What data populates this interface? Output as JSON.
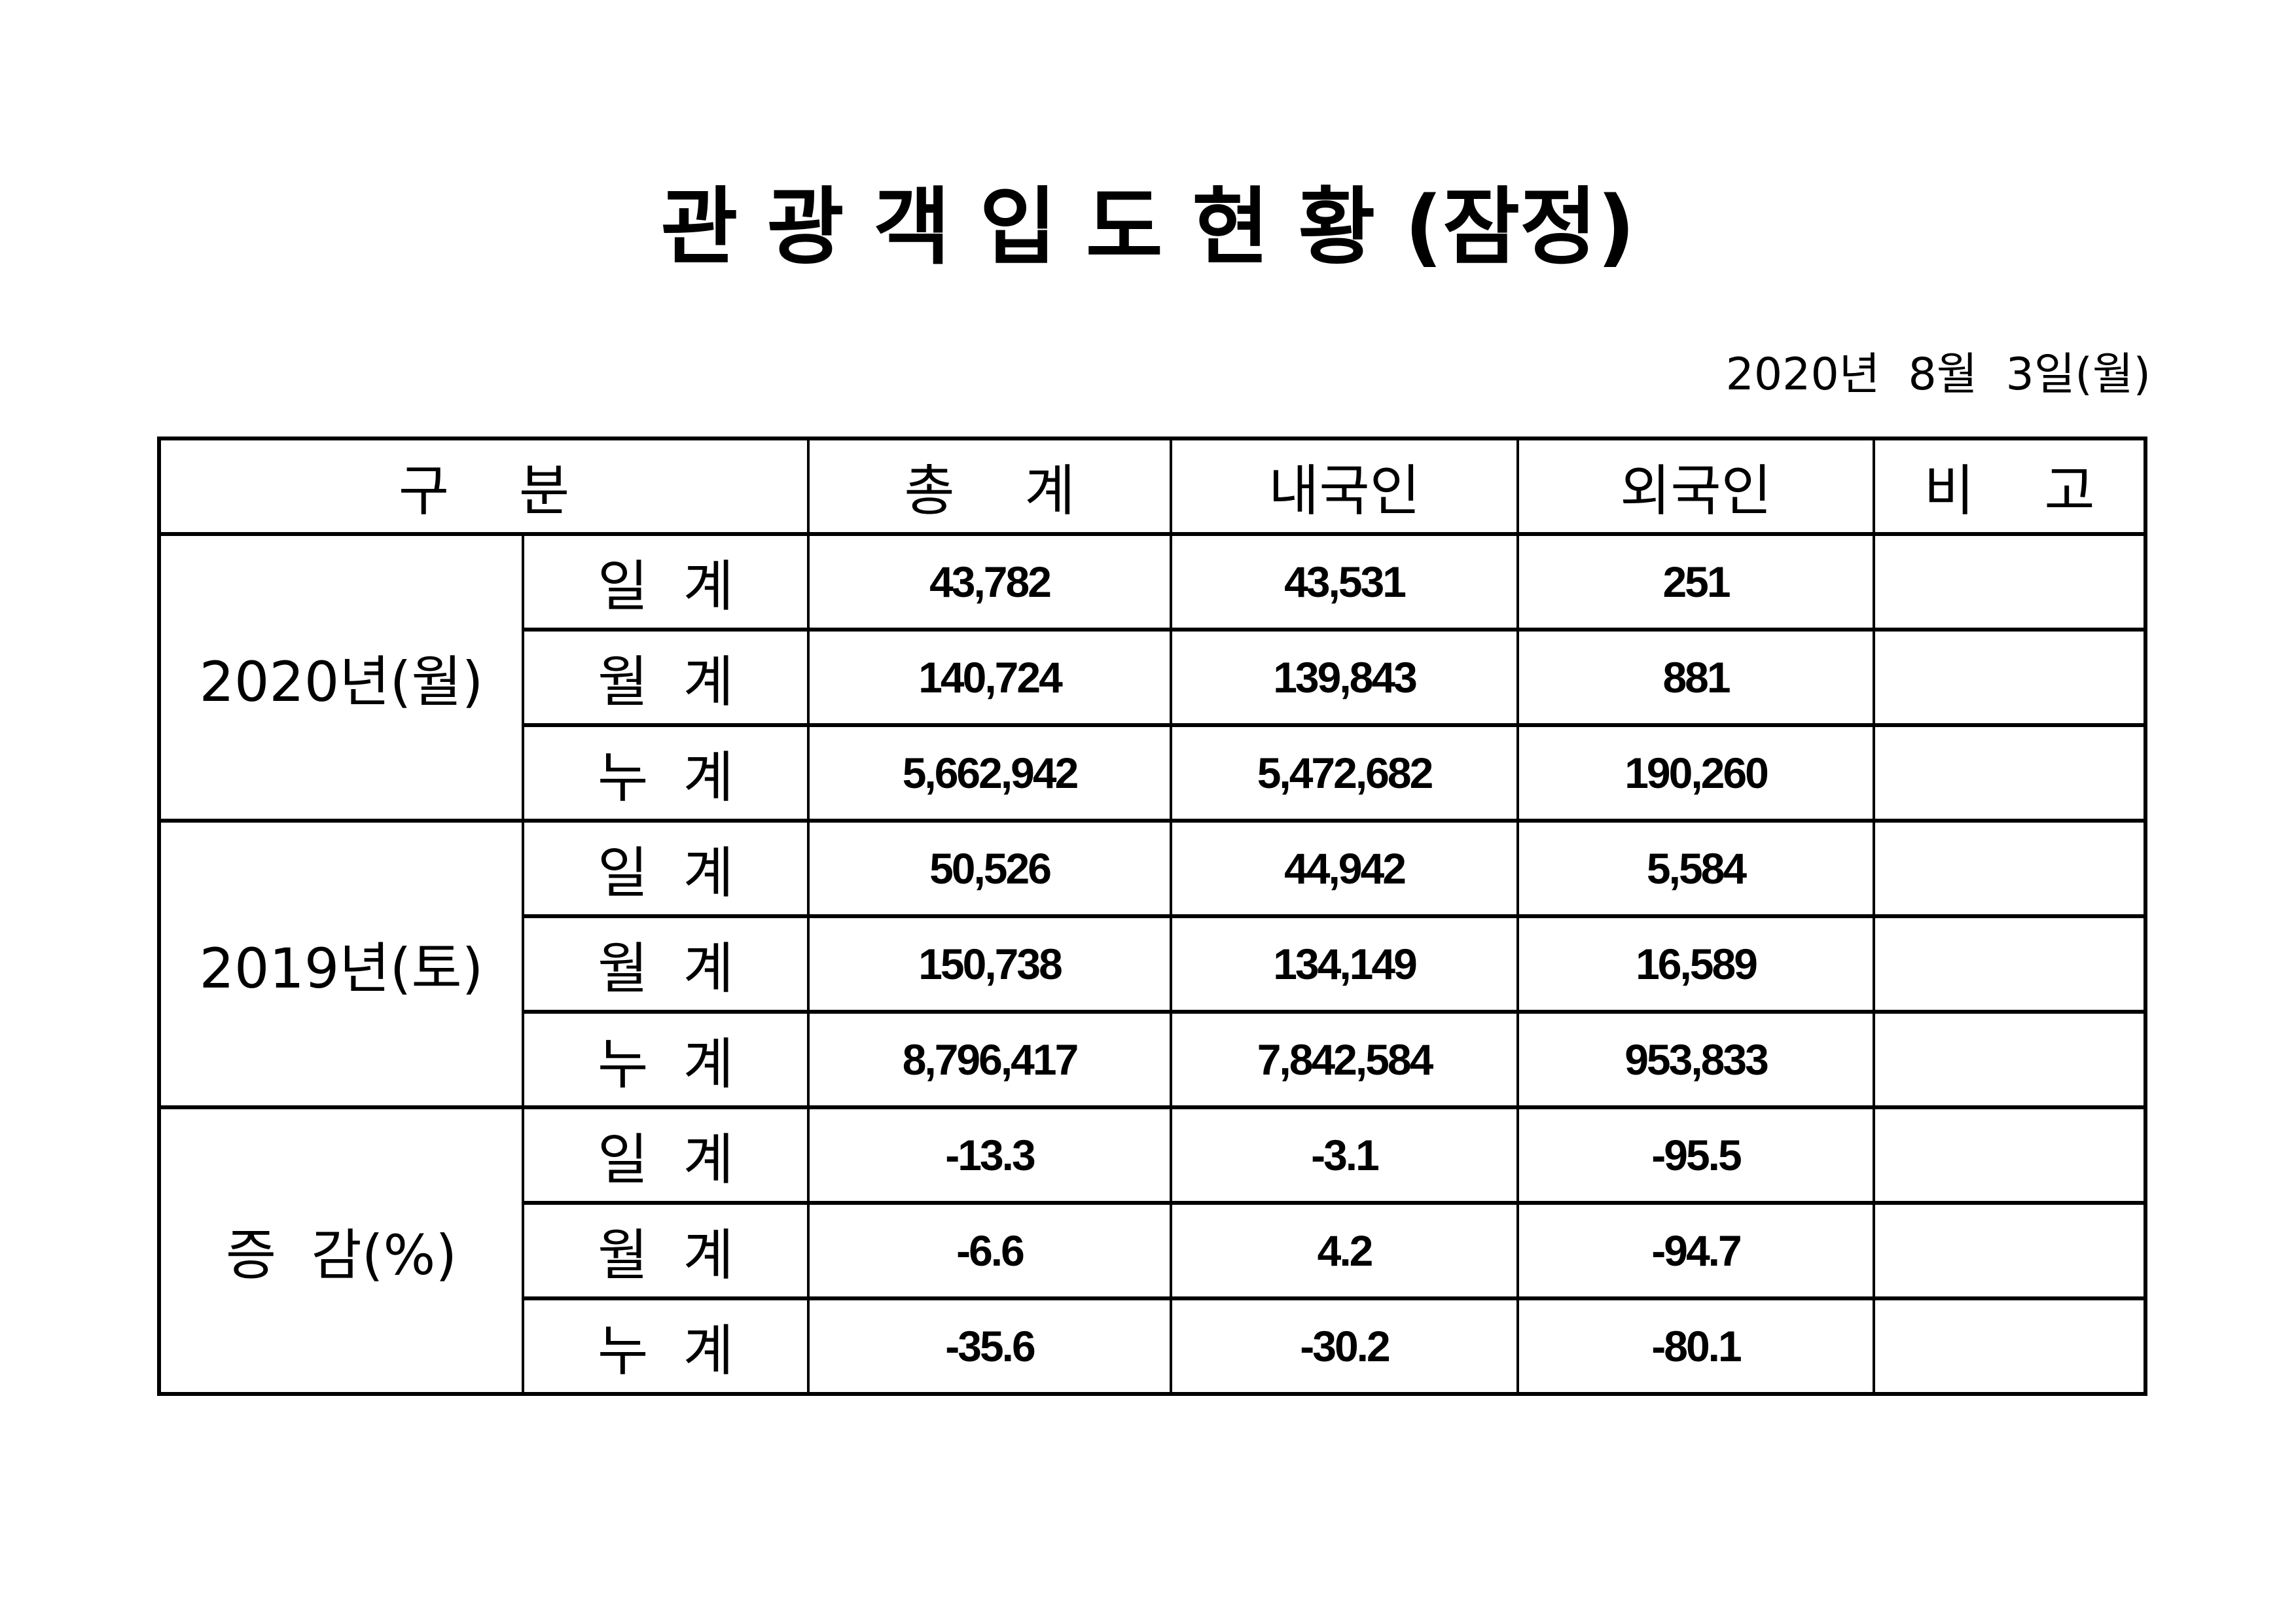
{
  "title": "관 광 객 입 도 현 황 (잠정)",
  "date": "2020년  8월  3일(월)",
  "table": {
    "headers": {
      "category": "구    분",
      "total": "총    계",
      "domestic": "내국인",
      "foreign": "외국인",
      "note": "비    고"
    },
    "groups": [
      {
        "label": "2020년(월)",
        "rows": [
          {
            "label": "일  계",
            "total": "43,782",
            "domestic": "43,531",
            "foreign": "251",
            "note": ""
          },
          {
            "label": "월  계",
            "total": "140,724",
            "domestic": "139,843",
            "foreign": "881",
            "note": ""
          },
          {
            "label": "누  계",
            "total": "5,662,942",
            "domestic": "5,472,682",
            "foreign": "190,260",
            "note": ""
          }
        ]
      },
      {
        "label": "2019년(토)",
        "rows": [
          {
            "label": "일  계",
            "total": "50,526",
            "domestic": "44,942",
            "foreign": "5,584",
            "note": ""
          },
          {
            "label": "월  계",
            "total": "150,738",
            "domestic": "134,149",
            "foreign": "16,589",
            "note": ""
          },
          {
            "label": "누  계",
            "total": "8,796,417",
            "domestic": "7,842,584",
            "foreign": "953,833",
            "note": ""
          }
        ]
      },
      {
        "label": "증  감(%)",
        "rows": [
          {
            "label": "일  계",
            "total": "-13.3",
            "domestic": "-3.1",
            "foreign": "-95.5",
            "note": ""
          },
          {
            "label": "월  계",
            "total": "-6.6",
            "domestic": "4.2",
            "foreign": "-94.7",
            "note": ""
          },
          {
            "label": "누  계",
            "total": "-35.6",
            "domestic": "-30.2",
            "foreign": "-80.1",
            "note": ""
          }
        ]
      }
    ]
  }
}
